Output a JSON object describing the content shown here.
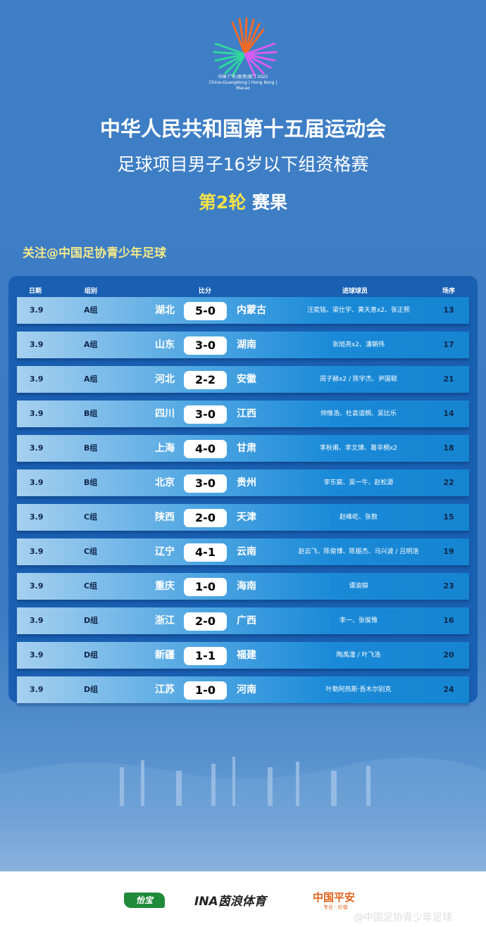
{
  "header": {
    "logo_text_cn": "中国·广东|香港|澳门 2025",
    "logo_text_en": "China-Guangdong | Hong Kong | Macao",
    "title": "中华人民共和国第十五届运动会",
    "subtitle": "足球项目男子16岁以下组资格赛",
    "round_highlight": "第2轮",
    "round_suffix": "赛果"
  },
  "follow": "关注@中国足协青少年足球",
  "table": {
    "columns": [
      "日期",
      "组别",
      "比分",
      "进球球员",
      "场序"
    ],
    "rows": [
      {
        "date": "3.9",
        "group": "A组",
        "home": "湖北",
        "score": "5-0",
        "away": "内蒙古",
        "scorers": "汪奕铭、梁仕宇、黄天意x2、张正熙",
        "match_no": "13"
      },
      {
        "date": "3.9",
        "group": "A组",
        "home": "山东",
        "score": "3-0",
        "away": "湖南",
        "scorers": "张旭尧x2、潘朝伟",
        "match_no": "17"
      },
      {
        "date": "3.9",
        "group": "A组",
        "home": "河北",
        "score": "2-2",
        "away": "安徽",
        "scorers": "周子赫x2 / 陈宇杰、尹国聪",
        "match_no": "21"
      },
      {
        "date": "3.9",
        "group": "B组",
        "home": "四川",
        "score": "3-0",
        "away": "江西",
        "scorers": "帅惟浩、杜袁谊桐、吴比乐",
        "match_no": "14"
      },
      {
        "date": "3.9",
        "group": "B组",
        "home": "上海",
        "score": "4-0",
        "away": "甘肃",
        "scorers": "李秋甫、李文博、葛辛桐x2",
        "match_no": "18"
      },
      {
        "date": "3.9",
        "group": "B组",
        "home": "北京",
        "score": "3-0",
        "away": "贵州",
        "scorers": "李东宸、吴一牛、赵松源",
        "match_no": "22"
      },
      {
        "date": "3.9",
        "group": "C组",
        "home": "陕西",
        "score": "2-0",
        "away": "天津",
        "scorers": "赵峰屹、张敖",
        "match_no": "15"
      },
      {
        "date": "3.9",
        "group": "C组",
        "home": "辽宁",
        "score": "4-1",
        "away": "云南",
        "scorers": "赵云飞、陈俊博、陈振杰、马兴波 / 吕明浩",
        "match_no": "19"
      },
      {
        "date": "3.9",
        "group": "C组",
        "home": "重庆",
        "score": "1-0",
        "away": "海南",
        "scorers": "谭渝锦",
        "match_no": "23"
      },
      {
        "date": "3.9",
        "group": "D组",
        "home": "浙江",
        "score": "2-0",
        "away": "广西",
        "scorers": "李一、张俊豫",
        "match_no": "16"
      },
      {
        "date": "3.9",
        "group": "D组",
        "home": "新疆",
        "score": "1-1",
        "away": "福建",
        "scorers": "陶禹潼 / 叶飞浩",
        "match_no": "20"
      },
      {
        "date": "3.9",
        "group": "D组",
        "home": "江苏",
        "score": "1-0",
        "away": "河南",
        "scorers": "叶勒阿热斯·吾木尔别克",
        "match_no": "24"
      }
    ]
  },
  "sponsors": {
    "s1": "怡宝",
    "s2": "INA茵浪体育",
    "s3": "中国平安",
    "s3_tagline": "专业 · 价值"
  },
  "watermark": "@中国足协青少年足球",
  "colors": {
    "background": "#3a7bc3",
    "panel": "#1a60b2",
    "highlight": "#f3e14a"
  }
}
